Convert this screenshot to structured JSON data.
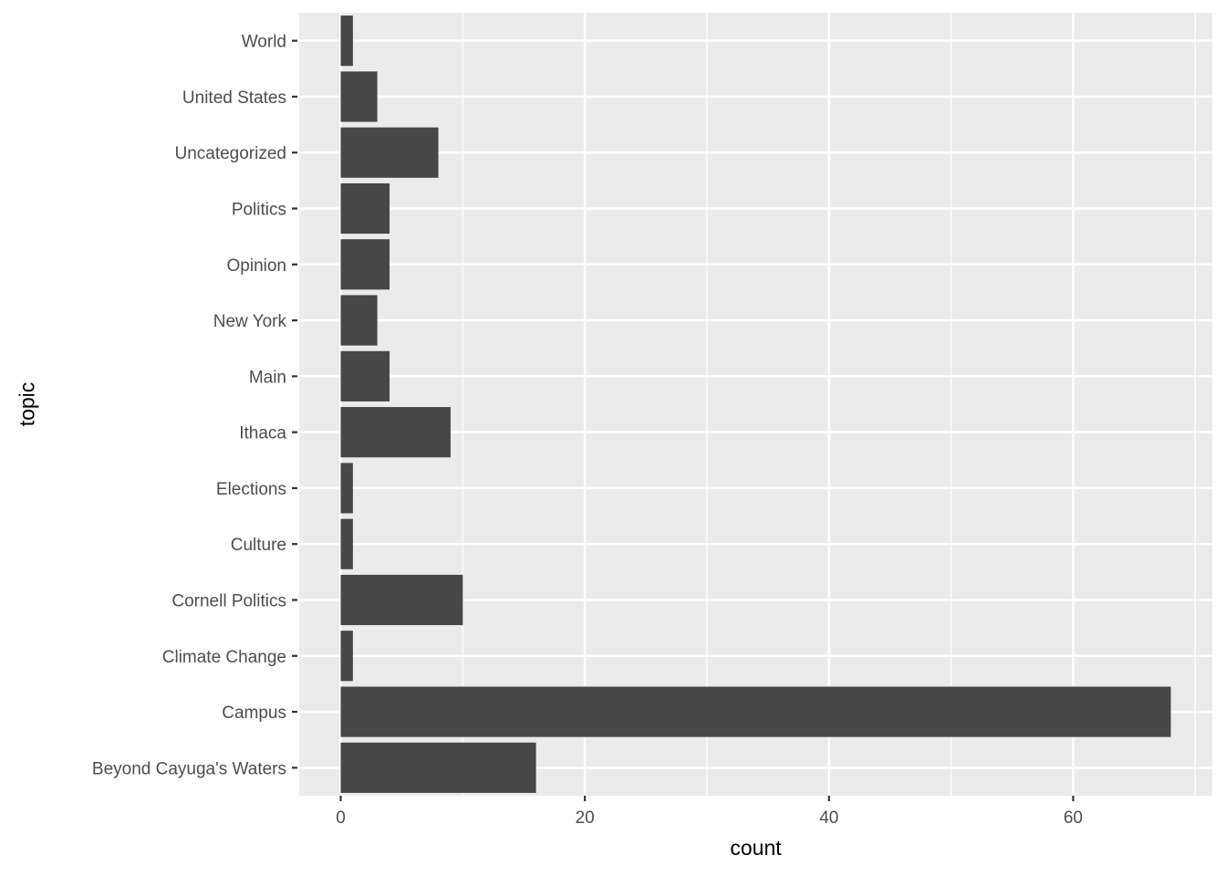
{
  "chart_data": {
    "type": "bar",
    "orientation": "horizontal",
    "title": "",
    "xlabel": "count",
    "ylabel": "topic",
    "categories": [
      "World",
      "United States",
      "Uncategorized",
      "Politics",
      "Opinion",
      "New York",
      "Main",
      "Ithaca",
      "Elections",
      "Culture",
      "Cornell Politics",
      "Climate Change",
      "Campus",
      "Beyond Cayuga's Waters"
    ],
    "values": [
      1,
      3,
      8,
      4,
      4,
      3,
      4,
      9,
      1,
      1,
      10,
      1,
      68,
      16
    ],
    "x_ticks": [
      0,
      20,
      40,
      60
    ],
    "x_minor_gridlines": [
      10,
      30,
      50,
      70
    ],
    "xlim": [
      -3.4,
      71.4
    ],
    "bar_width_fraction": 0.9,
    "grid": true,
    "legend_position": "none",
    "colors": {
      "bar": "#474747",
      "panel_background": "#EBEBEB",
      "gridline": "#FFFFFF",
      "tick_mark": "#333333",
      "tick_label": "#4D4D4D",
      "axis_title": "#000000",
      "figure_background": "#FFFFFF"
    }
  }
}
